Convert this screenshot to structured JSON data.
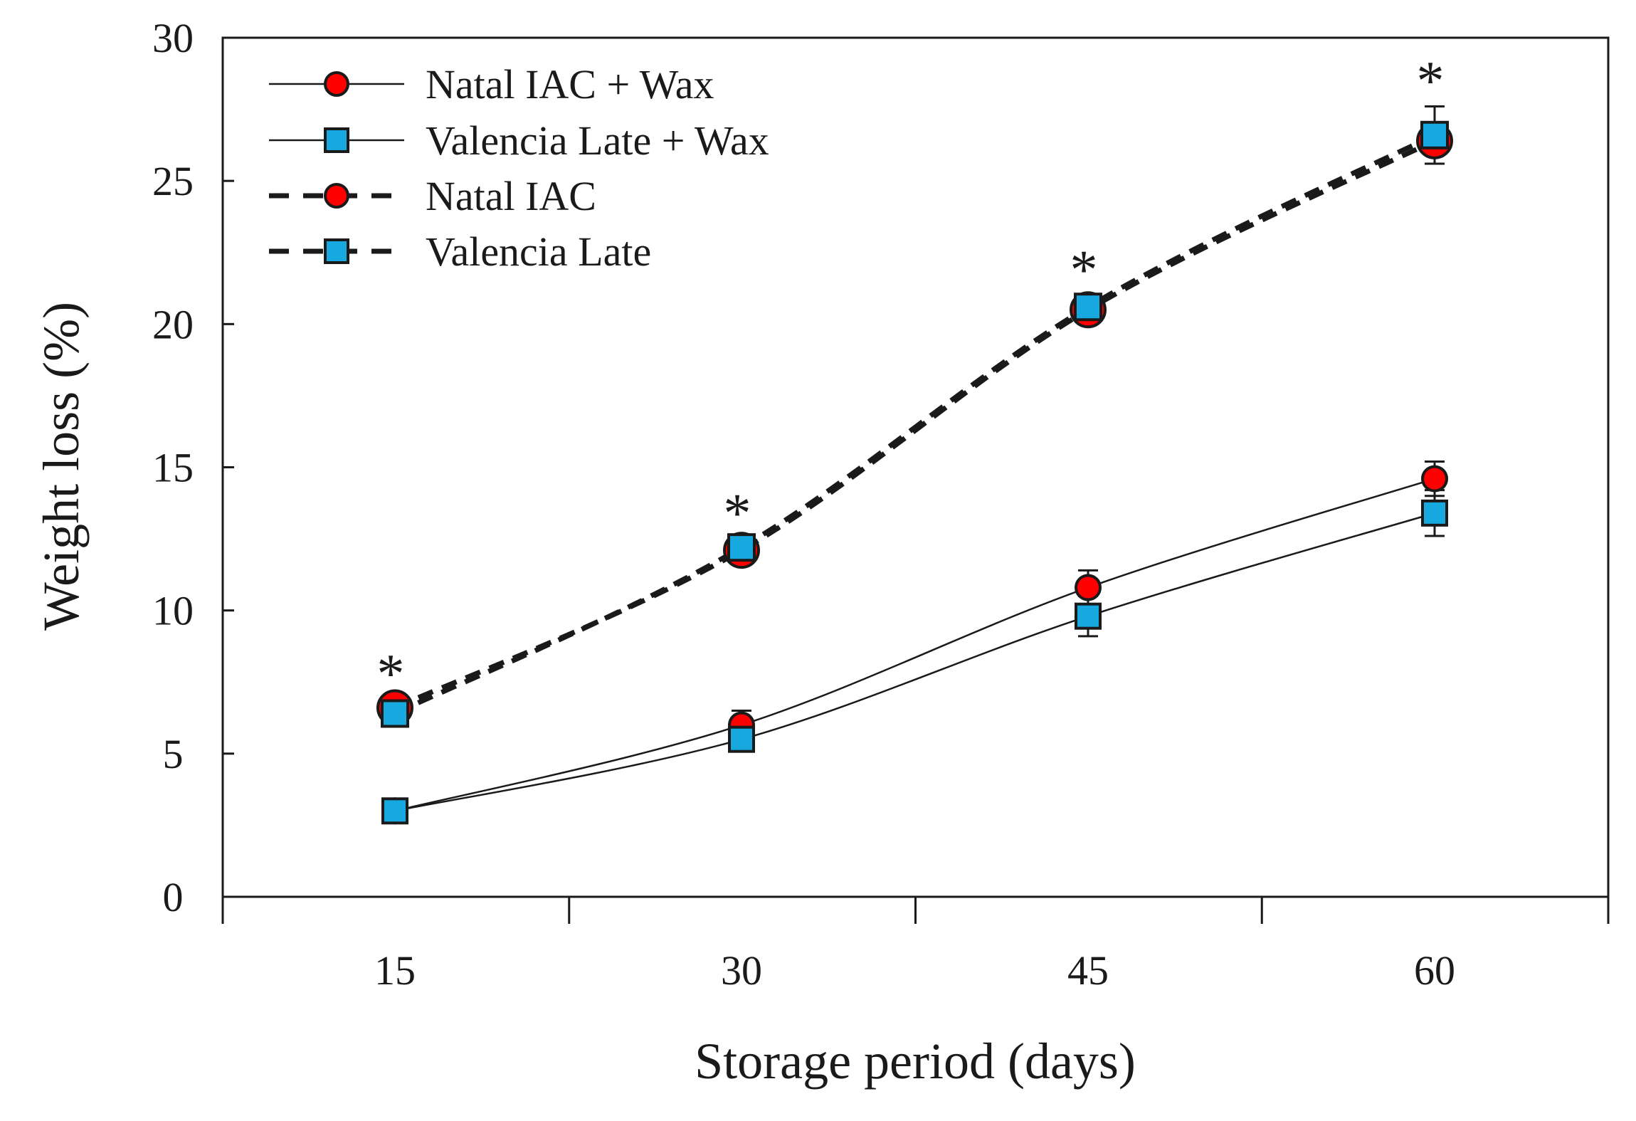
{
  "chart_data": {
    "type": "line",
    "title": "",
    "xlabel": "Storage period (days)",
    "ylabel": "Weight loss (%)",
    "categories": [
      "15",
      "30",
      "45",
      "60"
    ],
    "x": [
      15,
      30,
      45,
      60
    ],
    "ylim": [
      0,
      30
    ],
    "yticks": [
      0,
      5,
      10,
      15,
      20,
      25,
      30
    ],
    "grid": false,
    "legend_position": "top-left",
    "series": [
      {
        "name": "Natal IAC + Wax",
        "marker": "circle",
        "line_style": "solid",
        "color": "#ff0000",
        "values": [
          3.0,
          6.0,
          10.8,
          14.6
        ],
        "errors": [
          0.2,
          0.5,
          0.6,
          0.6
        ]
      },
      {
        "name": "Valencia Late + Wax",
        "marker": "square",
        "line_style": "solid",
        "color": "#18a8e0",
        "values": [
          3.0,
          5.5,
          9.8,
          13.4
        ],
        "errors": [
          0.2,
          0.3,
          0.7,
          0.8
        ]
      },
      {
        "name": "Natal IAC",
        "marker": "circle",
        "line_style": "dashed",
        "color": "#ff0000",
        "values": [
          6.6,
          12.1,
          20.5,
          26.4
        ],
        "errors": [
          0.3,
          0.3,
          0.4,
          0.4
        ]
      },
      {
        "name": "Valencia Late",
        "marker": "square",
        "line_style": "dashed",
        "color": "#18a8e0",
        "values": [
          6.4,
          12.2,
          20.6,
          26.6
        ],
        "errors": [
          0.3,
          0.3,
          0.4,
          1.0
        ]
      }
    ],
    "annotations": [
      {
        "x": 15,
        "text": "*"
      },
      {
        "x": 30,
        "text": "*"
      },
      {
        "x": 45,
        "text": "*"
      },
      {
        "x": 60,
        "text": "*"
      }
    ]
  }
}
